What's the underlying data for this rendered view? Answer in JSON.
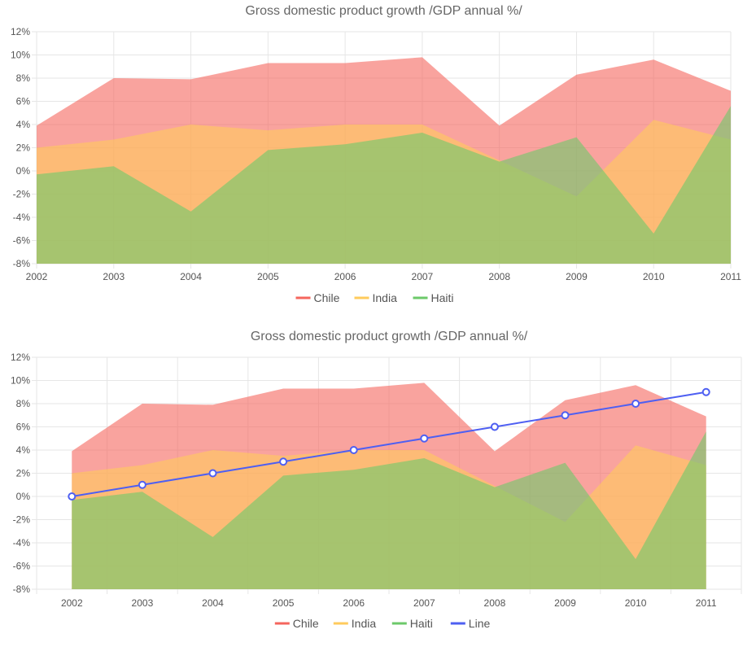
{
  "colors": {
    "chile": "#f5665d",
    "india": "#ffcb5c",
    "haiti": "#6cc96a",
    "line": "#4e5ff2"
  },
  "chart_data": [
    {
      "type": "area",
      "title": "Gross domestic product growth /GDP annual %/",
      "categories": [
        "2002",
        "2003",
        "2004",
        "2005",
        "2006",
        "2007",
        "2008",
        "2009",
        "2010",
        "2011"
      ],
      "ylim": [
        -8,
        12
      ],
      "yticks": [
        "12%",
        "10%",
        "8%",
        "6%",
        "4%",
        "2%",
        "0%",
        "-2%",
        "-4%",
        "-6%",
        "-8%"
      ],
      "grid": true,
      "legend_position": "bottom",
      "series": [
        {
          "name": "Chile",
          "type": "area",
          "values": [
            3.9,
            8.0,
            7.9,
            9.3,
            9.3,
            9.8,
            3.9,
            8.3,
            9.6,
            6.9
          ]
        },
        {
          "name": "India",
          "type": "area",
          "values": [
            2.0,
            2.7,
            4.0,
            3.5,
            4.0,
            4.0,
            0.9,
            -2.2,
            4.4,
            2.7
          ]
        },
        {
          "name": "Haiti",
          "type": "area",
          "values": [
            -0.3,
            0.4,
            -3.5,
            1.8,
            2.3,
            3.3,
            0.8,
            2.9,
            -5.4,
            5.6
          ]
        }
      ]
    },
    {
      "type": "area",
      "title": "Gross domestic product growth /GDP annual %/",
      "categories": [
        "2002",
        "2003",
        "2004",
        "2005",
        "2006",
        "2007",
        "2008",
        "2009",
        "2010",
        "2011"
      ],
      "ylim": [
        -8,
        12
      ],
      "yticks": [
        "12%",
        "10%",
        "8%",
        "6%",
        "4%",
        "2%",
        "0%",
        "-2%",
        "-4%",
        "-6%",
        "-8%"
      ],
      "grid": true,
      "legend_position": "bottom",
      "series": [
        {
          "name": "Chile",
          "type": "area",
          "values": [
            3.9,
            8.0,
            7.9,
            9.3,
            9.3,
            9.8,
            3.9,
            8.3,
            9.6,
            6.9
          ]
        },
        {
          "name": "India",
          "type": "area",
          "values": [
            2.0,
            2.7,
            4.0,
            3.5,
            4.0,
            4.0,
            0.9,
            -2.2,
            4.4,
            2.7
          ]
        },
        {
          "name": "Haiti",
          "type": "area",
          "values": [
            -0.3,
            0.4,
            -3.5,
            1.8,
            2.3,
            3.3,
            0.8,
            2.9,
            -5.4,
            5.6
          ]
        },
        {
          "name": "Line",
          "type": "line",
          "values": [
            0,
            1,
            2,
            3,
            4,
            5,
            6,
            7,
            8,
            9
          ]
        }
      ]
    }
  ]
}
